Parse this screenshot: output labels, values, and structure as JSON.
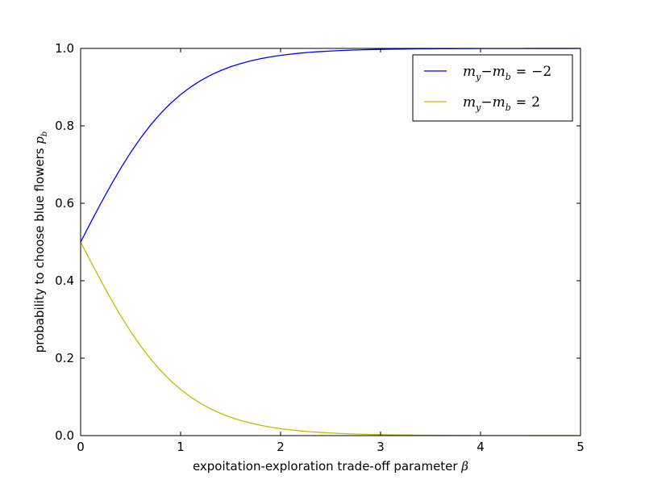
{
  "chart_data": {
    "type": "line",
    "xlabel": "expoitation-exploration trade-off parameter",
    "xlabel_symbol": "β",
    "ylabel": "probability to choose blue flowers",
    "ylabel_symbol": "p",
    "ylabel_symbol_sub": "b",
    "xlim": [
      0,
      5
    ],
    "ylim": [
      0,
      1
    ],
    "xticks": [
      "0",
      "1",
      "2",
      "3",
      "4",
      "5"
    ],
    "yticks": [
      "0.0",
      "0.2",
      "0.4",
      "0.6",
      "0.8",
      "1.0"
    ],
    "grid": false,
    "legend_position": "top-right",
    "x": [
      0,
      0.1,
      0.2,
      0.3,
      0.4,
      0.5,
      0.6,
      0.7,
      0.8,
      0.9,
      1.0,
      1.1,
      1.2,
      1.3,
      1.4,
      1.5,
      1.6,
      1.7,
      1.8,
      1.9,
      2.0,
      2.1,
      2.2,
      2.3,
      2.4,
      2.5,
      2.6,
      2.7,
      2.8,
      2.9,
      3.0,
      3.1,
      3.2,
      3.3,
      3.4,
      3.5,
      3.6,
      3.7,
      3.8,
      3.9,
      4.0,
      4.1,
      4.2,
      4.3,
      4.4,
      4.5,
      4.6,
      4.7,
      4.8,
      4.9,
      5.0
    ],
    "series": [
      {
        "name": "m_y − m_b = −2",
        "legend": {
          "a": "m",
          "a_sub": "y",
          "op": "−",
          "b": "m",
          "b_sub": "b",
          "eq": "=",
          "val": "−2"
        },
        "color": "#0000ff",
        "values": [
          0.5,
          0.5498,
          0.5987,
          0.6457,
          0.69,
          0.7311,
          0.7685,
          0.8022,
          0.832,
          0.8581,
          0.8808,
          0.9002,
          0.9168,
          0.9309,
          0.9427,
          0.9526,
          0.9608,
          0.9677,
          0.9734,
          0.9781,
          0.982,
          0.9852,
          0.9879,
          0.9901,
          0.9918,
          0.9933,
          0.9945,
          0.9955,
          0.9963,
          0.997,
          0.9975,
          0.998,
          0.9983,
          0.9986,
          0.9989,
          0.9991,
          0.9993,
          0.9994,
          0.9995,
          0.9996,
          0.9997,
          0.9997,
          0.9998,
          0.9998,
          0.9998,
          0.9999,
          0.9999,
          0.9999,
          0.9999,
          0.9999,
          1.0
        ]
      },
      {
        "name": "m_y − m_b = 2",
        "legend": {
          "a": "m",
          "a_sub": "y",
          "op": "−",
          "b": "m",
          "b_sub": "b",
          "eq": "=",
          "val": "2"
        },
        "color": "#bfbf00",
        "values": [
          0.5,
          0.4502,
          0.4013,
          0.3543,
          0.31,
          0.2689,
          0.2315,
          0.1978,
          0.168,
          0.1419,
          0.1192,
          0.0998,
          0.0832,
          0.0691,
          0.0573,
          0.0474,
          0.0392,
          0.0323,
          0.0266,
          0.0219,
          0.018,
          0.0148,
          0.0121,
          0.0099,
          0.0082,
          0.0067,
          0.0055,
          0.0045,
          0.0037,
          0.003,
          0.0025,
          0.002,
          0.0017,
          0.0014,
          0.0011,
          0.0009,
          0.0007,
          0.0006,
          0.0005,
          0.0004,
          0.0003,
          0.0003,
          0.0002,
          0.0002,
          0.0002,
          0.0001,
          0.0001,
          0.0001,
          0.0001,
          0.0001,
          0.0
        ]
      }
    ]
  }
}
